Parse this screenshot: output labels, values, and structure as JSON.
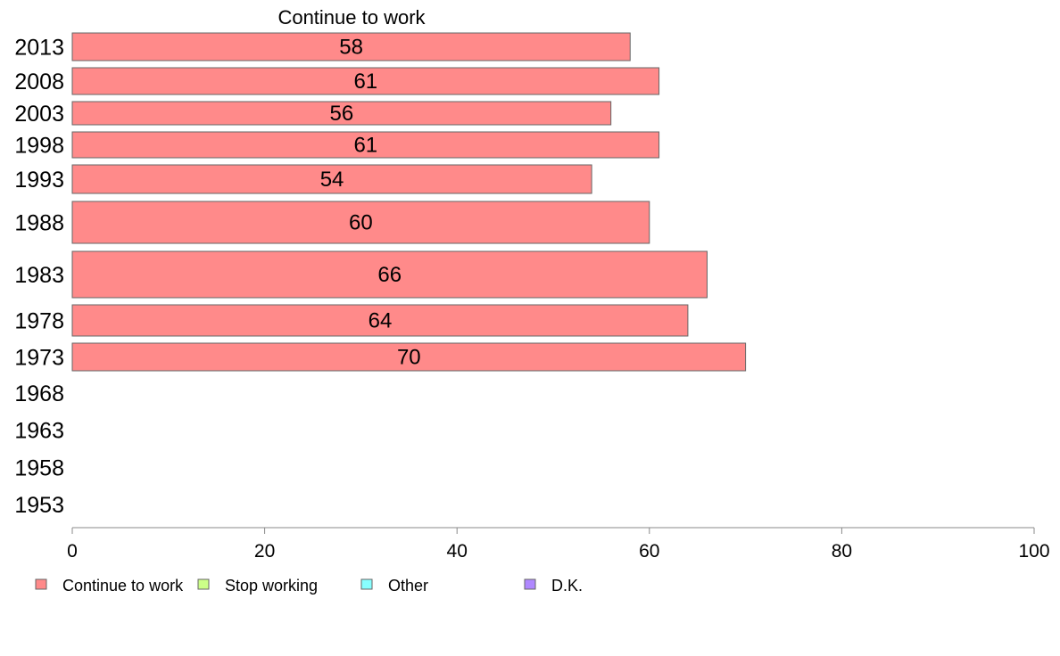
{
  "chart_data": {
    "type": "bar",
    "orientation": "horizontal",
    "title": "Continue to work",
    "categories": [
      "2013",
      "2008",
      "2003",
      "1998",
      "1993",
      "1988",
      "1983",
      "1978",
      "1973",
      "1968",
      "1963",
      "1958",
      "1953"
    ],
    "series": [
      {
        "name": "Continue to work",
        "color": "#ff8a8a",
        "values": [
          58,
          61,
          56,
          61,
          54,
          60,
          66,
          64,
          70,
          null,
          null,
          null,
          null
        ],
        "data_labels": [
          "58",
          "61",
          "56",
          "61",
          "54",
          "60",
          "66",
          "64",
          "70",
          "",
          "",
          "",
          ""
        ]
      }
    ],
    "xlim": [
      0,
      100
    ],
    "xticks": [
      "0",
      "20",
      "40",
      "60",
      "80",
      "100"
    ],
    "grid": false,
    "legend_placement": "bottom-left",
    "legend": [
      {
        "label": "Continue to work",
        "color": "#ff8a8a"
      },
      {
        "label": "Stop working",
        "color": "#ccff88"
      },
      {
        "label": "Other",
        "color": "#88ffff"
      },
      {
        "label": "D.K.",
        "color": "#b088ff"
      }
    ]
  }
}
